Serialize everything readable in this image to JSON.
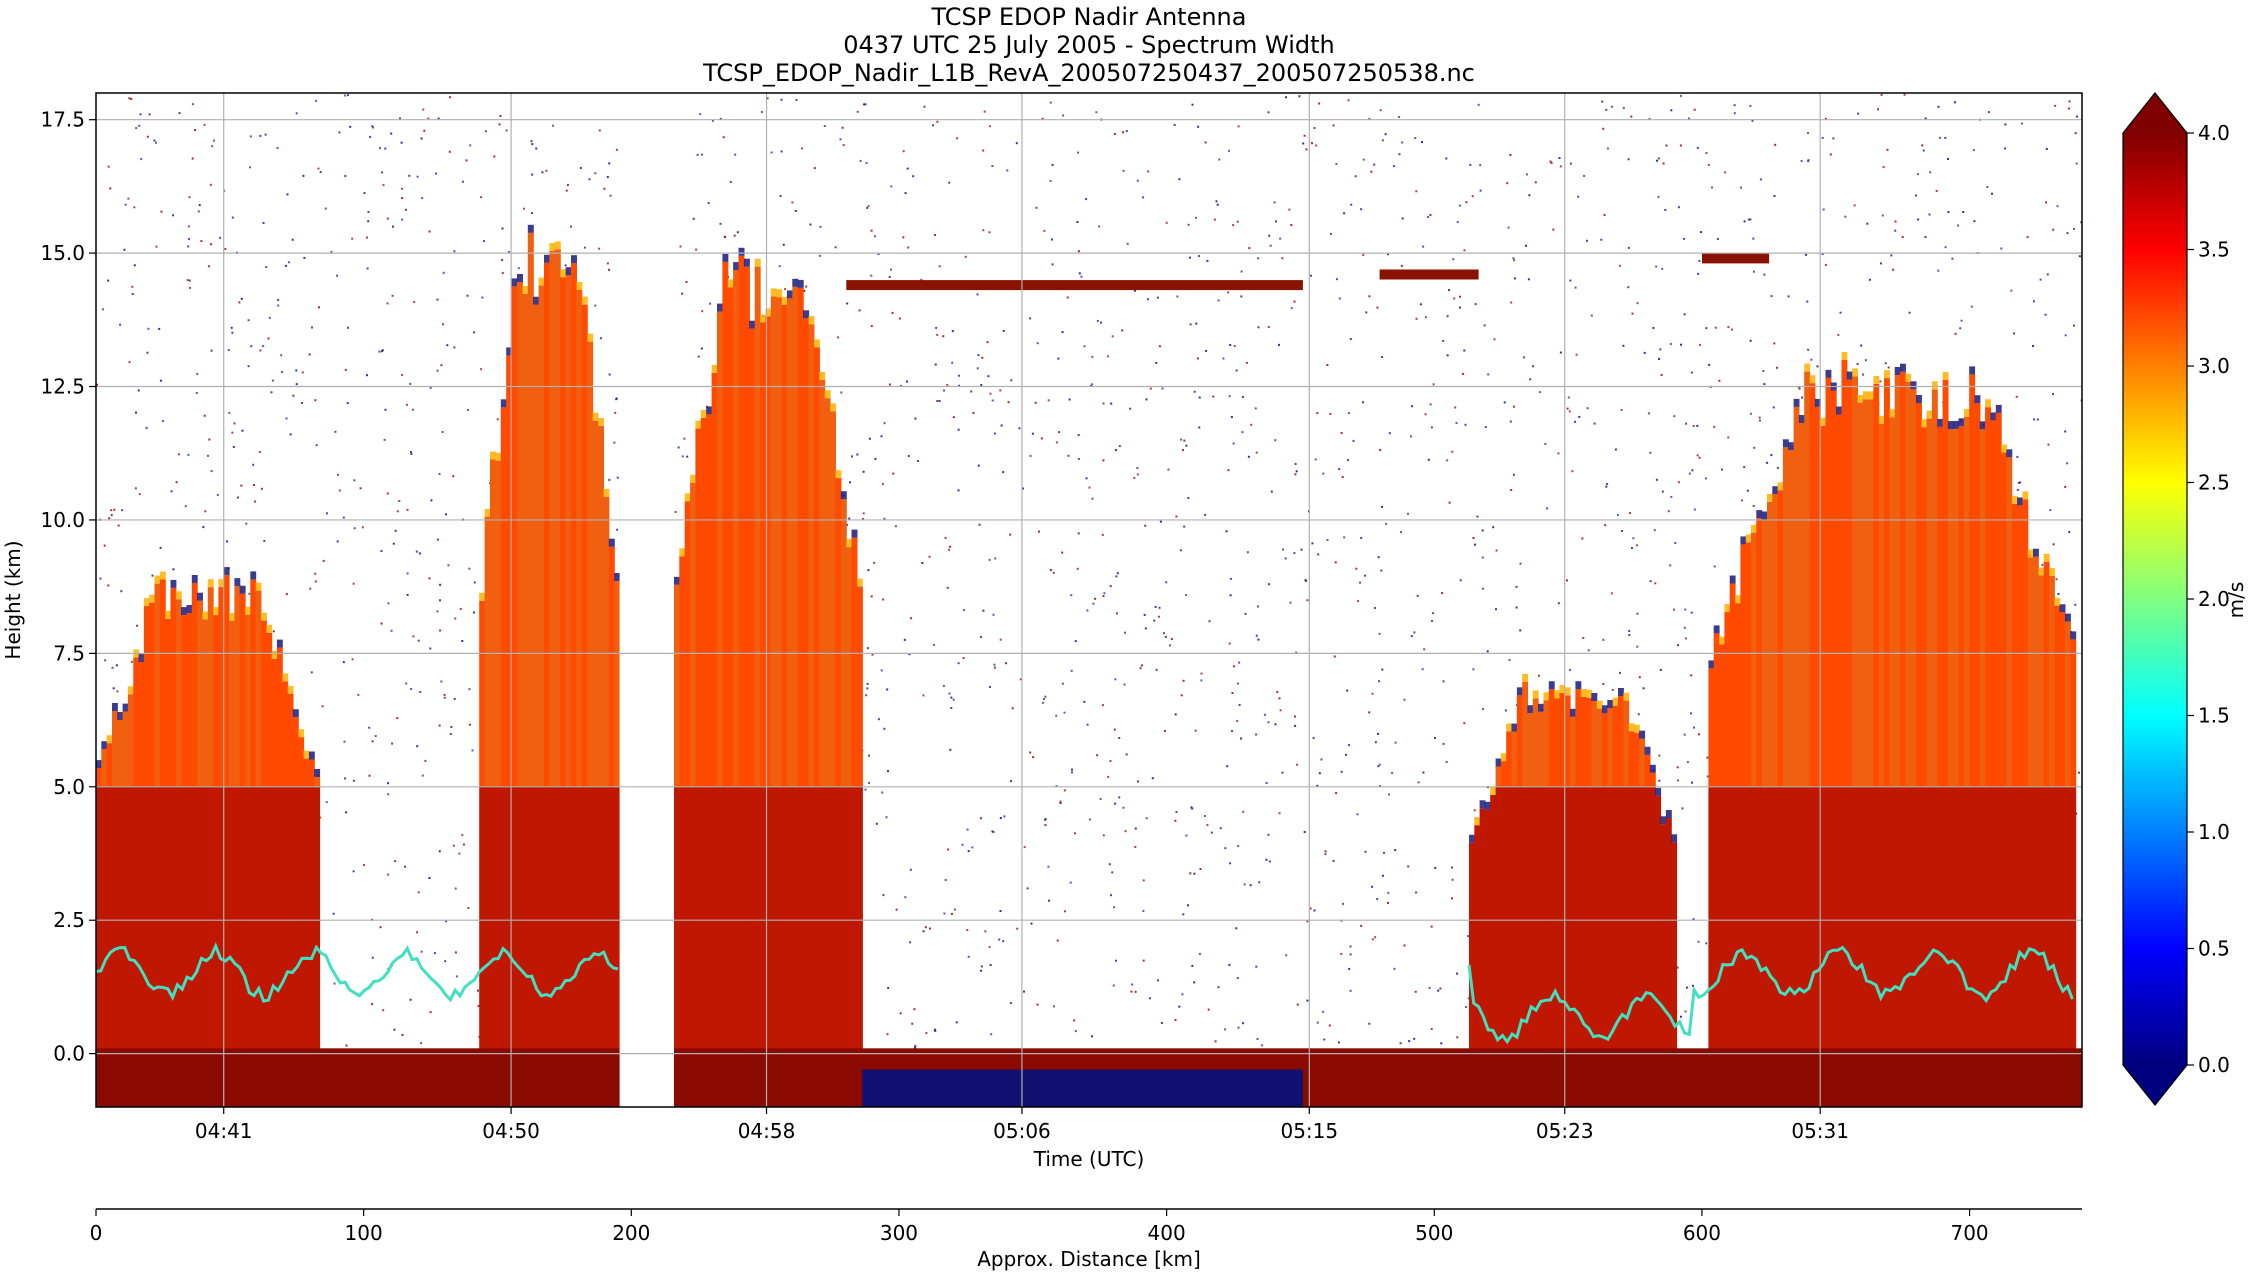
{
  "chart_data": {
    "type": "heatmap",
    "title": [
      "TCSP EDOP Nadir Antenna",
      "0437 UTC 25 July 2005 - Spectrum Width",
      "TCSP_EDOP_Nadir_L1B_RevA_200507250437_200507250538.nc"
    ],
    "xlabel": "Time (UTC)",
    "ylabel": "Height (km)",
    "x_time_ticks": [
      {
        "label": "04:41",
        "minute": 4
      },
      {
        "label": "04:50",
        "minute": 13
      },
      {
        "label": "04:58",
        "minute": 21
      },
      {
        "label": "05:06",
        "minute": 29
      },
      {
        "label": "05:15",
        "minute": 38
      },
      {
        "label": "05:23",
        "minute": 46
      },
      {
        "label": "05:31",
        "minute": 54
      }
    ],
    "x_time_range_minutes_after_0437": [
      0,
      62.2
    ],
    "ylim": [
      -1.0,
      18.0
    ],
    "y_ticks": [
      0.0,
      2.5,
      5.0,
      7.5,
      10.0,
      12.5,
      15.0,
      17.5
    ],
    "y_tick_labels": [
      "0.0",
      "2.5",
      "5.0",
      "7.5",
      "10.0",
      "12.5",
      "15.0",
      "17.5"
    ],
    "grid": true,
    "data_gap_minutes": [
      16.4,
      18.1
    ],
    "secondary_xaxis": {
      "label": "Approx. Distance [km]",
      "ticks": [
        0,
        100,
        200,
        300,
        400,
        500,
        600,
        700
      ],
      "range": [
        0,
        742
      ]
    },
    "colorbar": {
      "label": "m/s",
      "colormap": "jet",
      "range": [
        0.0,
        4.0
      ],
      "extend": "both",
      "ticks": [
        "0.0",
        "0.5",
        "1.0",
        "1.5",
        "2.0",
        "2.5",
        "3.0",
        "3.5",
        "4.0"
      ],
      "stops": [
        "#00007f",
        "#0000ff",
        "#0080ff",
        "#00ffff",
        "#80ff80",
        "#ffff00",
        "#ff8000",
        "#ff0000",
        "#7f0000"
      ]
    },
    "echo_features_description": "not printed",
    "convective_columns": [
      {
        "t0": 0.0,
        "t1": 7.0,
        "top_km": 9.0
      },
      {
        "t0": 12.0,
        "t1": 16.4,
        "top_km": 15.5
      },
      {
        "t0": 18.1,
        "t1": 24.0,
        "top_km": 15.0
      },
      {
        "t0": 43.0,
        "t1": 49.5,
        "top_km": 7.0
      },
      {
        "t0": 50.5,
        "t1": 62.0,
        "top_km": 13.0
      }
    ],
    "anvil_layers": [
      {
        "t0": 23.5,
        "t1": 37.8,
        "height_km": 14.4
      },
      {
        "t0": 40.2,
        "t1": 43.3,
        "height_km": 14.6
      },
      {
        "t0": 50.3,
        "t1": 52.4,
        "height_km": 14.9
      }
    ]
  }
}
